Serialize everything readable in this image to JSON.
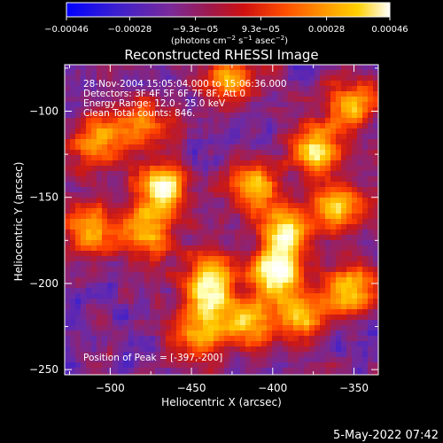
{
  "chart_data": {
    "type": "heatmap",
    "title": "Reconstructed RHESSI Image",
    "xlabel": "Heliocentric X (arcsec)",
    "ylabel": "Heliocentric Y (arcsec)",
    "xlim": [
      -528,
      -335
    ],
    "ylim": [
      -253,
      -73
    ],
    "x_ticks": [
      -500,
      -450,
      -400,
      -350
    ],
    "y_ticks": [
      -250,
      -200,
      -150,
      -100
    ],
    "x_tick_labels": [
      "−500",
      "−450",
      "−400",
      "−350"
    ],
    "y_tick_labels": [
      "−250",
      "−200",
      "−150",
      "−100"
    ],
    "grid": false,
    "colormap": [
      "#0000ff",
      "#3a1fd0",
      "#6a2aa8",
      "#9a2060",
      "#c81818",
      "#ff4000",
      "#ff8c00",
      "#ffc800",
      "#ffffb0",
      "#ffffff"
    ],
    "colorbar": {
      "range": [
        -0.00046,
        0.00046
      ],
      "ticks": [
        -0.00046,
        -0.00028,
        -9.3e-05,
        9.3e-05,
        0.00028,
        0.00046
      ],
      "tick_labels": [
        "−0.00046",
        "−0.00028",
        "−9.3e−05",
        "9.3e−05",
        "0.00028",
        "0.00046"
      ],
      "units_prefix": "(photons cm",
      "units_exp1": "−2",
      "units_mid": " s",
      "units_exp2": "−1",
      "units_mid2": " asec",
      "units_exp3": "−2",
      "units_suffix": ")"
    },
    "peak_position": [
      -397,
      -200
    ],
    "sources": [
      {
        "x": -468,
        "y": -150,
        "value": 0.00042
      },
      {
        "x": -397,
        "y": -200,
        "value": 0.00046
      },
      {
        "x": -392,
        "y": -175,
        "value": 0.00035
      },
      {
        "x": -372,
        "y": -125,
        "value": 0.00033
      },
      {
        "x": -360,
        "y": -160,
        "value": 0.0003
      },
      {
        "x": -412,
        "y": -148,
        "value": 0.00026
      },
      {
        "x": -352,
        "y": -212,
        "value": 0.0003
      },
      {
        "x": -438,
        "y": -218,
        "value": 0.00027
      },
      {
        "x": -508,
        "y": -120,
        "value": 0.00024
      },
      {
        "x": -512,
        "y": -175,
        "value": 0.00022
      },
      {
        "x": -478,
        "y": -178,
        "value": 0.00022
      },
      {
        "x": -425,
        "y": -82,
        "value": 0.00022
      },
      {
        "x": -350,
        "y": -98,
        "value": 0.00024
      },
      {
        "x": -448,
        "y": -240,
        "value": 0.0002
      },
      {
        "x": -415,
        "y": -232,
        "value": 0.00024
      },
      {
        "x": -480,
        "y": -110,
        "value": 0.00018
      },
      {
        "x": -440,
        "y": -200,
        "value": 0.0002
      },
      {
        "x": -383,
        "y": -228,
        "value": 0.00025
      }
    ]
  },
  "annotations": {
    "time_range": "28-Nov-2004 15:05:04.000 to 15:06:36.000",
    "detectors": "Detectors: 3F 4F 5F 6F 7F 8F, Att 0",
    "energy_range": "Energy Range: 12.0 - 25.0 keV",
    "method_counts": "Clean     Total counts: 846.",
    "peak_label": "Position of Peak = [-397,-200]"
  },
  "footer": {
    "timestamp": "5-May-2022 07:42"
  }
}
